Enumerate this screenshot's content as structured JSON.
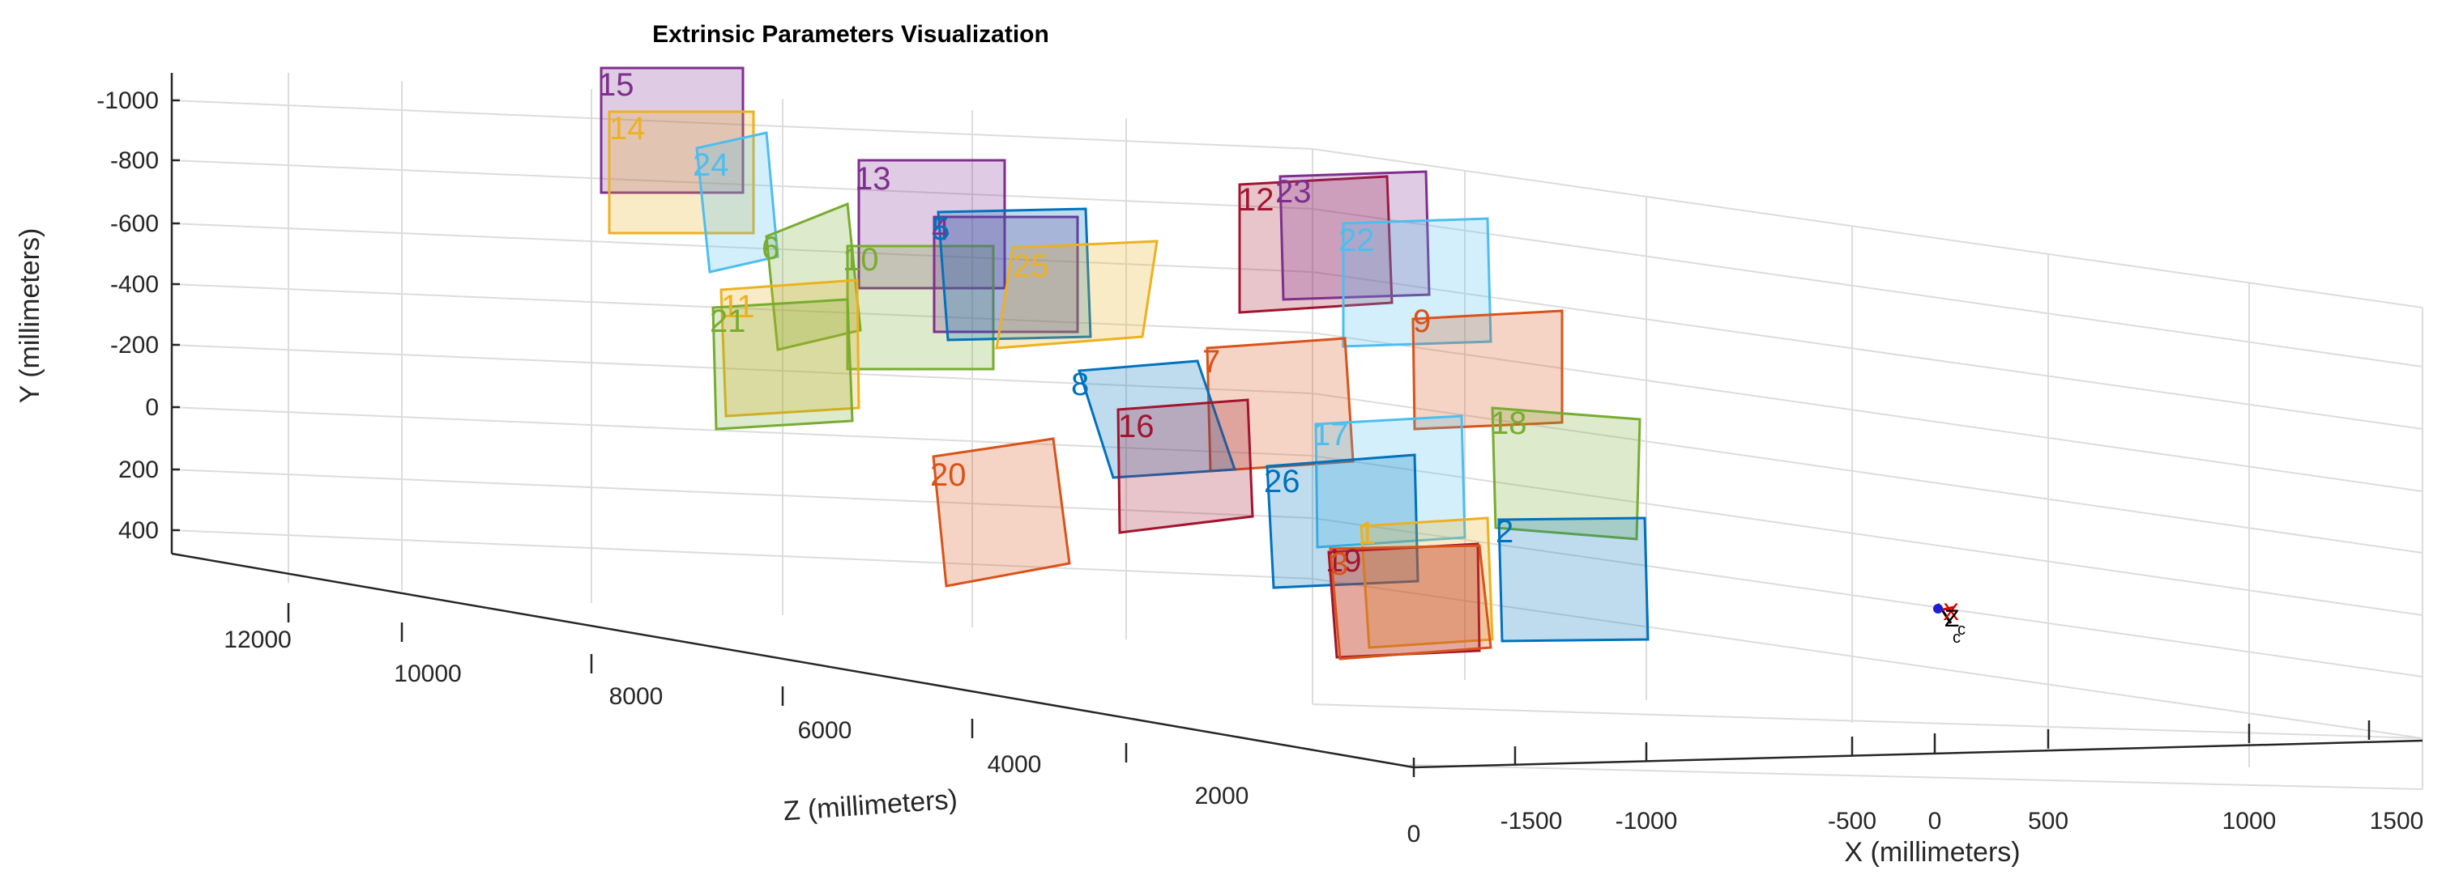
{
  "chart_data": {
    "type": "scatter",
    "title": "Extrinsic Parameters Visualization",
    "xlabel": "X (millimeters)",
    "ylabel": "Y (millimeters)",
    "zlabel": "Z (millimeters)",
    "x_ticks": [
      "-1500",
      "-1000",
      "-500",
      "0",
      "500",
      "1000",
      "1500"
    ],
    "y_ticks": [
      "-1000",
      "-800",
      "-600",
      "-400",
      "-200",
      "0",
      "200",
      "400"
    ],
    "z_ticks": [
      "12000",
      "10000",
      "8000",
      "6000",
      "4000",
      "2000",
      "0"
    ],
    "xlim": [
      -1700,
      1700
    ],
    "ylim": [
      -1100,
      500
    ],
    "zlim": [
      0,
      13000
    ],
    "grid": true,
    "camera_labels": [
      "X",
      "Z",
      "c",
      "c"
    ],
    "planes": [
      {
        "id": "1",
        "color": "#EDB120"
      },
      {
        "id": "2",
        "color": "#0072BD"
      },
      {
        "id": "3",
        "color": "#D95319"
      },
      {
        "id": "4",
        "color": "#7E2F8E"
      },
      {
        "id": "5",
        "color": "#0072BD"
      },
      {
        "id": "6",
        "color": "#77AC30"
      },
      {
        "id": "7",
        "color": "#D95319"
      },
      {
        "id": "8",
        "color": "#0072BD"
      },
      {
        "id": "9",
        "color": "#D95319"
      },
      {
        "id": "10",
        "color": "#77AC30"
      },
      {
        "id": "11",
        "color": "#EDB120"
      },
      {
        "id": "12",
        "color": "#A2142F"
      },
      {
        "id": "13",
        "color": "#7E2F8E"
      },
      {
        "id": "14",
        "color": "#EDB120"
      },
      {
        "id": "15",
        "color": "#7E2F8E"
      },
      {
        "id": "16",
        "color": "#A2142F"
      },
      {
        "id": "17",
        "color": "#4DBEEE"
      },
      {
        "id": "18",
        "color": "#77AC30"
      },
      {
        "id": "19",
        "color": "#A2142F"
      },
      {
        "id": "20",
        "color": "#D95319"
      },
      {
        "id": "21",
        "color": "#77AC30"
      },
      {
        "id": "22",
        "color": "#4DBEEE"
      },
      {
        "id": "23",
        "color": "#7E2F8E"
      },
      {
        "id": "24",
        "color": "#4DBEEE"
      },
      {
        "id": "25",
        "color": "#EDB120"
      },
      {
        "id": "26",
        "color": "#0072BD"
      }
    ]
  }
}
